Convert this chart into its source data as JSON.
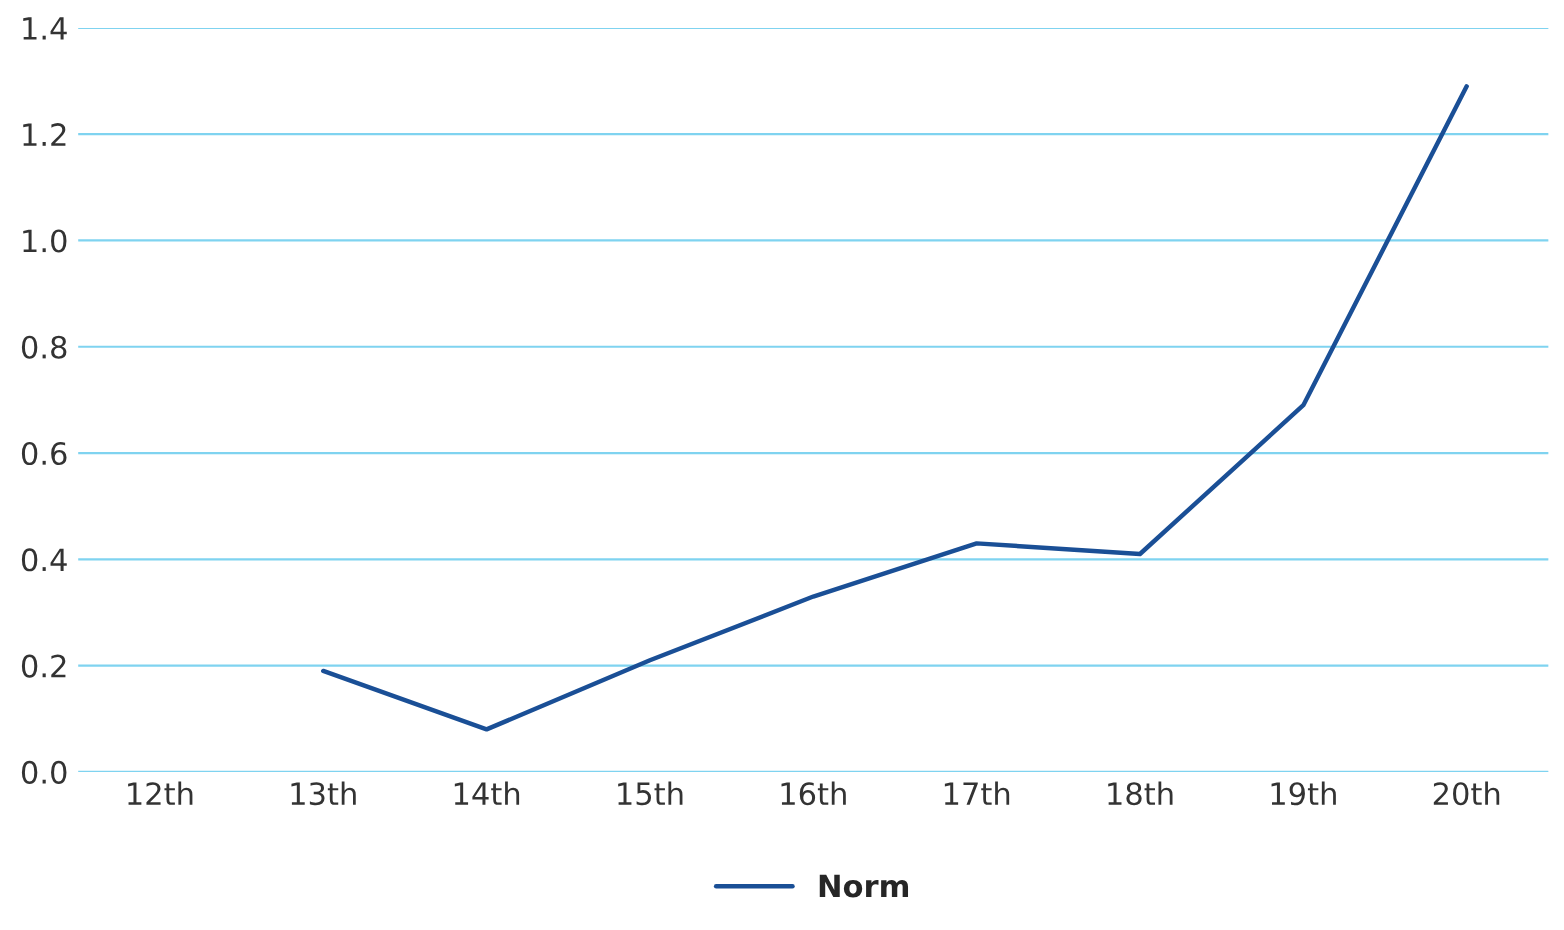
{
  "chart_data": {
    "type": "line",
    "categories": [
      "12th",
      "13th",
      "14th",
      "15th",
      "16th",
      "17th",
      "18th",
      "19th",
      "20th"
    ],
    "series": [
      {
        "name": "Norm",
        "color": "#1a4f96",
        "values": [
          null,
          0.19,
          0.08,
          0.21,
          0.33,
          0.43,
          0.41,
          0.69,
          1.29
        ]
      }
    ],
    "ylim": [
      0,
      1.4
    ],
    "yticks": [
      {
        "value": 0,
        "label": "0.0"
      },
      0.2,
      0.4,
      0.6,
      0.8,
      {
        "value": 1,
        "label": "1.0"
      },
      1.2,
      1.4
    ],
    "grid": "y",
    "legend": "bottom",
    "marker": "none",
    "line_style": "solid"
  }
}
